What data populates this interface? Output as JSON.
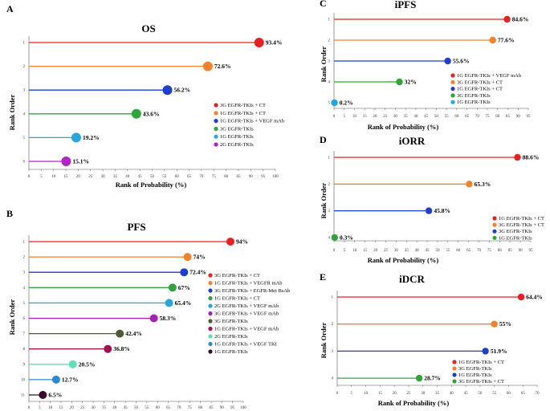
{
  "chart_data": [
    {
      "id": "A",
      "letter": "A",
      "type": "lollipop",
      "title": "OS",
      "xlabel": "Rank of Probability (%)",
      "ylabel": "Rank Order",
      "xlim": [
        0,
        100
      ],
      "xticks": [
        0,
        5,
        10,
        15,
        20,
        25,
        30,
        35,
        40,
        45,
        50,
        55,
        60,
        65,
        70,
        75,
        80,
        85,
        90,
        95,
        100
      ],
      "value_suffix": "%",
      "legend_position": "right",
      "series": [
        {
          "rank": "1",
          "name": "3G EGFR-TKIs + CT",
          "value": 93.4,
          "label": "93.4%",
          "color": "#e8201f"
        },
        {
          "rank": "2",
          "name": "1G EGFR-TKIs + CT",
          "value": 72.6,
          "label": "72.6%",
          "color": "#f5822a"
        },
        {
          "rank": "3",
          "name": "1G EGFR-TKIs + VEGF mAb",
          "value": 56.2,
          "label": "56.2%",
          "color": "#1c3fcf"
        },
        {
          "rank": "4",
          "name": "3G EGFR-TKIs",
          "value": 43.6,
          "label": "43.6%",
          "color": "#2ea53a"
        },
        {
          "rank": "5",
          "name": "1G EGFR-TKIs",
          "value": 19.2,
          "label": "19.2%",
          "color": "#27a6de"
        },
        {
          "rank": "6",
          "name": "2G EGFR-TKIs",
          "value": 15.1,
          "label": "15.1%",
          "color": "#b224c8"
        }
      ]
    },
    {
      "id": "B",
      "letter": "B",
      "type": "lollipop",
      "title": "PFS",
      "xlabel": "Rank of Probability (%)",
      "ylabel": "Rank Order",
      "xlim": [
        0,
        100
      ],
      "xticks": [
        0,
        5,
        10,
        15,
        20,
        25,
        30,
        35,
        40,
        45,
        50,
        55,
        60,
        65,
        70,
        75,
        80,
        85,
        90,
        95,
        100
      ],
      "legend_position": "right",
      "series": [
        {
          "rank": "1",
          "name": "3G EGFR-TKIs + CT",
          "value": 94,
          "label": "94%",
          "color": "#e8201f"
        },
        {
          "rank": "2",
          "name": "1G EGFR-TKIs + VEGFR mAb",
          "value": 74,
          "label": "74%",
          "color": "#f5822a"
        },
        {
          "rank": "3",
          "name": "3G EGFR-TKIs + EGFR-Met BsAb",
          "value": 72.4,
          "label": "72.4%",
          "color": "#1c3fcf"
        },
        {
          "rank": "4",
          "name": "1G EGFR-TKIs + CT",
          "value": 67,
          "label": "67%",
          "color": "#2ea53a"
        },
        {
          "rank": "5",
          "name": "2G EGFR-TKIs + VEGF mAb",
          "value": 65.4,
          "label": "65.4%",
          "color": "#27a6de"
        },
        {
          "rank": "6",
          "name": "3G EGFR-TKIs + VEGF mAb",
          "value": 58.3,
          "label": "58.3%",
          "color": "#a51fb5"
        },
        {
          "rank": "7",
          "name": "3G EGFR-TKIs",
          "value": 42.4,
          "label": "42.4%",
          "color": "#4d5a35"
        },
        {
          "rank": "8",
          "name": "1G EGFR-TKIs + VEGF mAb",
          "value": 36.8,
          "label": "36.8%",
          "color": "#a3124e"
        },
        {
          "rank": "9",
          "name": "2G EGFR-TKIs",
          "value": 20.5,
          "label": "20.5%",
          "color": "#5fe0b6"
        },
        {
          "rank": "10",
          "name": "1G EGFR-TKIs + VEGF TKI",
          "value": 12.7,
          "label": "12.7%",
          "color": "#2b8ad8"
        },
        {
          "rank": "11",
          "name": "1G EGFR-TKIs",
          "value": 6.5,
          "label": "6.5%",
          "color": "#3a0a2c"
        }
      ]
    },
    {
      "id": "C",
      "letter": "C",
      "type": "lollipop",
      "title": "iPFS",
      "xlabel": "Rank of Probability (%)",
      "ylabel": "Rank Order",
      "xlim": [
        0,
        95
      ],
      "xticks": [
        0,
        5,
        10,
        15,
        20,
        25,
        30,
        35,
        40,
        45,
        50,
        55,
        60,
        65,
        70,
        75,
        80,
        85,
        90,
        95
      ],
      "legend_position": "right",
      "series": [
        {
          "rank": "1",
          "name": "1G EGFR-TKIs + VEGF mAb",
          "value": 84.6,
          "label": "84.6%",
          "color": "#e8201f"
        },
        {
          "rank": "2",
          "name": "3G EGFR-TKIs + CT",
          "value": 77.6,
          "label": "77.6%",
          "color": "#f5822a"
        },
        {
          "rank": "3",
          "name": "1G EGFR-TKIs + CT",
          "value": 55.6,
          "label": "55.6%",
          "color": "#1c3fcf"
        },
        {
          "rank": "4",
          "name": "3G EGFR-TKIs",
          "value": 32,
          "label": "32%",
          "color": "#2ea53a"
        },
        {
          "rank": "5",
          "name": "1G EGFR-TKIs",
          "value": 0.2,
          "label": "0.2%",
          "color": "#27a6de"
        }
      ]
    },
    {
      "id": "D",
      "letter": "D",
      "type": "lollipop",
      "title": "iORR",
      "xlabel": "Rank of Probability (%)",
      "ylabel": "Rank Order",
      "xlim": [
        0,
        95
      ],
      "xticks": [
        0,
        5,
        10,
        15,
        20,
        25,
        30,
        35,
        40,
        45,
        50,
        55,
        60,
        65,
        70,
        75,
        80,
        85,
        90,
        95
      ],
      "legend_position": "right",
      "series": [
        {
          "rank": "1",
          "name": "1G EGFR-TKIs + CT",
          "value": 88.6,
          "label": "88.6%",
          "color": "#e8201f"
        },
        {
          "rank": "2",
          "name": "3G EGFR-TKIs + CT",
          "value": 65.3,
          "label": "65.3%",
          "color": "#f5822a"
        },
        {
          "rank": "3",
          "name": "3G EGFR-TKIs",
          "value": 45.8,
          "label": "45.8%",
          "color": "#1c3fcf"
        },
        {
          "rank": "4",
          "name": "1G EGFR-TKIs",
          "value": 0.3,
          "label": "0.3%",
          "color": "#2ea53a"
        }
      ]
    },
    {
      "id": "E",
      "letter": "E",
      "type": "lollipop",
      "title": "iDCR",
      "xlabel": "Rank of Probability (%)",
      "ylabel": "Rank Order",
      "xlim": [
        0,
        70
      ],
      "xticks": [
        0,
        5,
        10,
        15,
        20,
        25,
        30,
        35,
        40,
        45,
        50,
        55,
        60,
        65,
        70
      ],
      "legend_position": "right",
      "series": [
        {
          "rank": "1",
          "name": "1G EGFR-TKIs + CT",
          "value": 64.4,
          "label": "64.4%",
          "color": "#e8201f"
        },
        {
          "rank": "2",
          "name": "3G EGFR-TKIs",
          "value": 55,
          "label": "55%",
          "color": "#f5822a"
        },
        {
          "rank": "3",
          "name": "1G EGFR-TKIs",
          "value": 51.9,
          "label": "51.9%",
          "color": "#1c3fcf"
        },
        {
          "rank": "4",
          "name": "3G EGFR-TKIs + CT",
          "value": 28.7,
          "label": "28.7%",
          "color": "#2ea53a"
        }
      ]
    }
  ]
}
